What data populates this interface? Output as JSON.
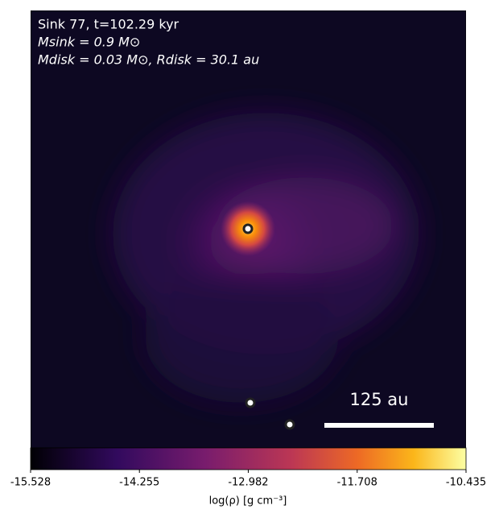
{
  "chart_data": {
    "type": "density-map",
    "annotations": [
      "Sink 77, t=102.29 kyr",
      "Msink = 0.9 M⊙",
      "Mdisk = 0.03 M⊙, Rdisk = 30.1 au"
    ],
    "scale_label": "125 au",
    "colorbar": {
      "label": "log(ρ) [g cm⁻³]",
      "lim": [
        -15.528,
        -10.435
      ],
      "ticks": [
        -15.528,
        -14.255,
        -12.982,
        -11.708,
        -10.435
      ]
    }
  }
}
